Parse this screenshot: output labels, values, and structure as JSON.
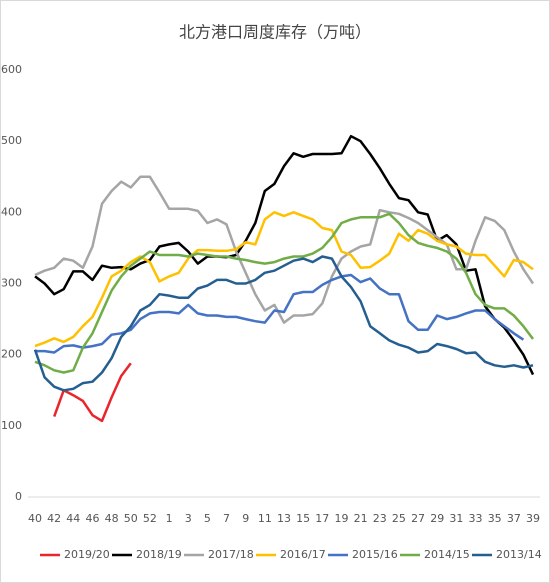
{
  "chart_data": {
    "type": "line",
    "title": "北方港口周度库存（万吨）",
    "categories": [
      "40",
      null,
      "42",
      null,
      "44",
      null,
      "46",
      null,
      "48",
      null,
      "50",
      null,
      "52",
      null,
      "1",
      null,
      "3",
      null,
      "5",
      null,
      "7",
      null,
      "9",
      null,
      "11",
      null,
      "13",
      null,
      "15",
      null,
      "17",
      null,
      "19",
      null,
      "21",
      null,
      "23",
      null,
      "25",
      null,
      "27",
      null,
      "29",
      null,
      "31",
      null,
      "33",
      null,
      "35",
      null,
      "37",
      null,
      "39"
    ],
    "ylim": [
      0,
      600
    ],
    "yticks": [
      0,
      100,
      200,
      300,
      400,
      500,
      600
    ],
    "grid": false,
    "legend": "bottom",
    "series": [
      {
        "name": "2019/20",
        "color": "#e8262b",
        "values": [
          null,
          null,
          113,
          150,
          143,
          135,
          115,
          107,
          140,
          170,
          188,
          null,
          null,
          null,
          null,
          null,
          null,
          null,
          null,
          null,
          null,
          null,
          null,
          null,
          null,
          null,
          null,
          null,
          null,
          null,
          null,
          null,
          null,
          null,
          null,
          null,
          null,
          null,
          null,
          null,
          null,
          null,
          null,
          null,
          null,
          null,
          null,
          null,
          null,
          null,
          null,
          null,
          null
        ]
      },
      {
        "name": "2018/19",
        "color": "#000000",
        "values": [
          310,
          300,
          285,
          292,
          317,
          317,
          305,
          325,
          322,
          323,
          320,
          328,
          333,
          352,
          355,
          357,
          345,
          328,
          338,
          338,
          337,
          340,
          360,
          385,
          430,
          440,
          465,
          483,
          478,
          482,
          482,
          482,
          483,
          507,
          500,
          482,
          462,
          440,
          420,
          417,
          400,
          397,
          360,
          368,
          355,
          318,
          320,
          268,
          250,
          238,
          220,
          200,
          172
        ]
      },
      {
        "name": "2017/18",
        "color": "#a5a5a5",
        "values": [
          312,
          318,
          322,
          335,
          332,
          322,
          352,
          412,
          430,
          443,
          435,
          450,
          450,
          428,
          405,
          405,
          405,
          402,
          385,
          390,
          383,
          345,
          315,
          285,
          262,
          270,
          245,
          255,
          255,
          257,
          272,
          310,
          335,
          345,
          352,
          355,
          403,
          400,
          398,
          392,
          385,
          375,
          365,
          355,
          320,
          320,
          360,
          393,
          388,
          375,
          345,
          320,
          300
        ]
      },
      {
        "name": "2016/17",
        "color": "#ffc000",
        "values": [
          212,
          217,
          223,
          218,
          225,
          240,
          253,
          280,
          310,
          318,
          330,
          338,
          330,
          303,
          310,
          315,
          335,
          347,
          347,
          346,
          346,
          348,
          358,
          355,
          390,
          400,
          395,
          400,
          395,
          390,
          378,
          375,
          345,
          340,
          322,
          323,
          332,
          342,
          370,
          360,
          375,
          370,
          360,
          355,
          352,
          342,
          340,
          340,
          325,
          310,
          333,
          330,
          320
        ]
      },
      {
        "name": "2015/16",
        "color": "#4472c4",
        "values": [
          205,
          205,
          203,
          212,
          213,
          210,
          212,
          215,
          228,
          230,
          235,
          250,
          258,
          260,
          260,
          258,
          270,
          258,
          255,
          255,
          253,
          253,
          250,
          247,
          245,
          262,
          260,
          285,
          288,
          288,
          298,
          305,
          310,
          312,
          302,
          307,
          293,
          285,
          285,
          247,
          235,
          235,
          255,
          250,
          253,
          258,
          262,
          262,
          250,
          240,
          230,
          221,
          null
        ]
      },
      {
        "name": "2014/15",
        "color": "#70ad47",
        "values": [
          190,
          185,
          178,
          175,
          178,
          210,
          230,
          260,
          290,
          310,
          325,
          335,
          345,
          340,
          340,
          340,
          338,
          342,
          340,
          338,
          338,
          335,
          333,
          330,
          328,
          330,
          335,
          338,
          338,
          342,
          350,
          365,
          385,
          390,
          393,
          393,
          393,
          398,
          385,
          368,
          357,
          353,
          350,
          345,
          335,
          315,
          285,
          270,
          265,
          265,
          255,
          240,
          222
        ]
      },
      {
        "name": "2013/14",
        "color": "#255e91",
        "values": [
          207,
          168,
          155,
          150,
          152,
          160,
          162,
          175,
          195,
          225,
          240,
          262,
          270,
          285,
          283,
          280,
          280,
          293,
          297,
          305,
          305,
          300,
          300,
          305,
          315,
          318,
          325,
          332,
          335,
          330,
          338,
          335,
          310,
          295,
          275,
          240,
          230,
          220,
          214,
          210,
          203,
          205,
          215,
          212,
          208,
          202,
          203,
          190,
          185,
          183,
          185,
          182,
          185
        ]
      }
    ]
  }
}
